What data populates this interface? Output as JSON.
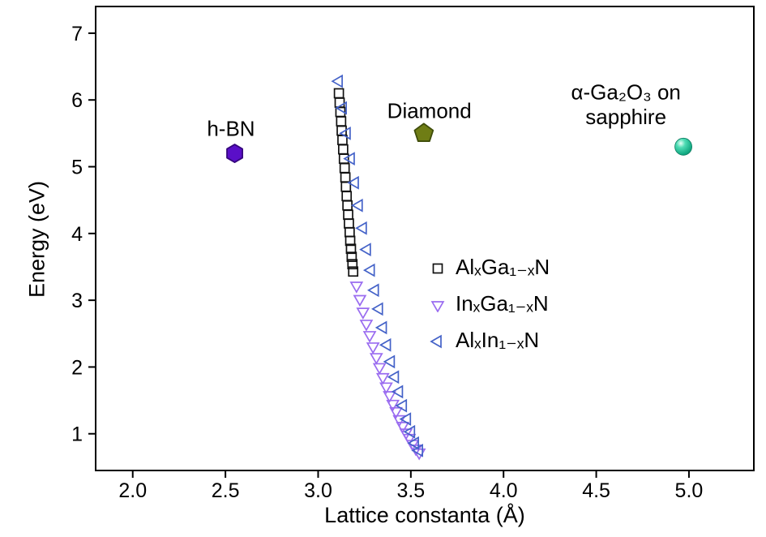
{
  "chart_data": {
    "type": "scatter",
    "title": "",
    "xlabel": "Lattice constanta (Å)",
    "ylabel": "Energy (eV)",
    "xlim": [
      1.8,
      5.35
    ],
    "ylim": [
      0.45,
      7.4
    ],
    "xticks": {
      "values": [
        2.0,
        2.5,
        3.0,
        3.5,
        4.0,
        4.5,
        5.0
      ],
      "labels": [
        "2.0",
        "2.5",
        "3.0",
        "3.5",
        "4.0",
        "4.5",
        "5.0"
      ]
    },
    "yticks": {
      "values": [
        1,
        2,
        3,
        4,
        5,
        6,
        7
      ],
      "labels": [
        "1",
        "2",
        "3",
        "4",
        "5",
        "6",
        "7"
      ]
    },
    "grid": false,
    "legend_position": "inside-center",
    "series": [
      {
        "id": "algan",
        "label": "AlₓGa₁₋ₓN",
        "marker": "square",
        "color": "#111111",
        "points": [
          [
            3.112,
            6.1
          ],
          [
            3.116,
            5.96
          ],
          [
            3.12,
            5.82
          ],
          [
            3.124,
            5.68
          ],
          [
            3.127,
            5.54
          ],
          [
            3.131,
            5.4
          ],
          [
            3.135,
            5.26
          ],
          [
            3.139,
            5.12
          ],
          [
            3.143,
            4.98
          ],
          [
            3.147,
            4.84
          ],
          [
            3.15,
            4.7
          ],
          [
            3.154,
            4.56
          ],
          [
            3.158,
            4.42
          ],
          [
            3.162,
            4.28
          ],
          [
            3.166,
            4.15
          ],
          [
            3.17,
            4.02
          ],
          [
            3.173,
            3.89
          ],
          [
            3.177,
            3.77
          ],
          [
            3.181,
            3.65
          ],
          [
            3.185,
            3.54
          ],
          [
            3.189,
            3.43
          ]
        ]
      },
      {
        "id": "ingan",
        "label": "InₓGa₁₋ₓN",
        "marker": "triangle-down",
        "color": "#9a6cf0",
        "points": [
          [
            3.207,
            3.22
          ],
          [
            3.225,
            3.02
          ],
          [
            3.242,
            2.83
          ],
          [
            3.26,
            2.65
          ],
          [
            3.278,
            2.48
          ],
          [
            3.296,
            2.31
          ],
          [
            3.314,
            2.15
          ],
          [
            3.331,
            2.0
          ],
          [
            3.349,
            1.85
          ],
          [
            3.367,
            1.71
          ],
          [
            3.385,
            1.58
          ],
          [
            3.403,
            1.45
          ],
          [
            3.42,
            1.34
          ],
          [
            3.438,
            1.22
          ],
          [
            3.456,
            1.12
          ],
          [
            3.474,
            1.02
          ],
          [
            3.492,
            0.94
          ],
          [
            3.509,
            0.85
          ],
          [
            3.527,
            0.78
          ],
          [
            3.545,
            0.72
          ]
        ]
      },
      {
        "id": "alinn",
        "label": "AlₓIn₁₋ₓN",
        "marker": "triangle-left",
        "color": "#4462c8",
        "points": [
          [
            3.112,
            6.28
          ],
          [
            3.134,
            5.88
          ],
          [
            3.155,
            5.5
          ],
          [
            3.177,
            5.12
          ],
          [
            3.199,
            4.76
          ],
          [
            3.22,
            4.42
          ],
          [
            3.242,
            4.08
          ],
          [
            3.264,
            3.76
          ],
          [
            3.285,
            3.45
          ],
          [
            3.307,
            3.15
          ],
          [
            3.329,
            2.87
          ],
          [
            3.35,
            2.59
          ],
          [
            3.372,
            2.33
          ],
          [
            3.393,
            2.08
          ],
          [
            3.415,
            1.85
          ],
          [
            3.437,
            1.63
          ],
          [
            3.458,
            1.42
          ],
          [
            3.48,
            1.22
          ],
          [
            3.502,
            1.03
          ],
          [
            3.523,
            0.86
          ],
          [
            3.545,
            0.75
          ]
        ]
      }
    ],
    "materials": [
      {
        "id": "h-bn",
        "label_lines": [
          "h-BN"
        ],
        "marker": "hexagon",
        "fill": "#5a0fc8",
        "edge": "#36077e",
        "x": 2.55,
        "y": 5.2,
        "label_x": 2.53,
        "label_y": 5.46
      },
      {
        "id": "diamond",
        "label_lines": [
          "Diamond"
        ],
        "marker": "pentagon",
        "fill": "#6f7d15",
        "edge": "#3f4d0a",
        "x": 3.57,
        "y": 5.5,
        "label_x": 3.6,
        "label_y": 5.73
      },
      {
        "id": "ga2o3-sapphire",
        "label_lines": [
          "α-Ga₂O₃ on",
          "sapphire"
        ],
        "marker": "sphere",
        "fill": "#18b48c",
        "edge": "#0a7a5e",
        "x": 4.97,
        "y": 5.3,
        "label_x": 4.66,
        "label_y": 6.01
      }
    ]
  }
}
